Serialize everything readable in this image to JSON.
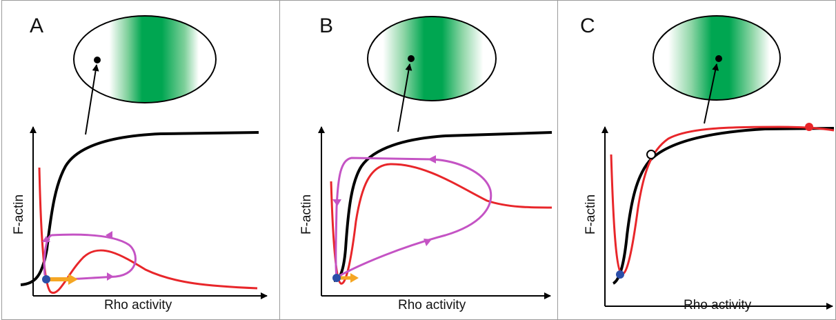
{
  "colors": {
    "frame": "#9a9a9a",
    "axis": "#000000",
    "f_actin_curve": "#000000",
    "rho_curve": "#e8262a",
    "trajectory": "#c453c4",
    "stable_point": "#2b4ea8",
    "perturbation_arrow": "#f5a623",
    "zone_green": "#00a651"
  },
  "panels": [
    {
      "letter": "A",
      "xlabel": "Rho activity",
      "ylabel": "F-actin",
      "cell_point": "off-center"
    },
    {
      "letter": "B",
      "xlabel": "Rho activity",
      "ylabel": "F-actin",
      "cell_point": "edge-of-zone"
    },
    {
      "letter": "C",
      "xlabel": "Rho activity",
      "ylabel": "F-actin",
      "cell_point": "center-of-zone"
    }
  ]
}
